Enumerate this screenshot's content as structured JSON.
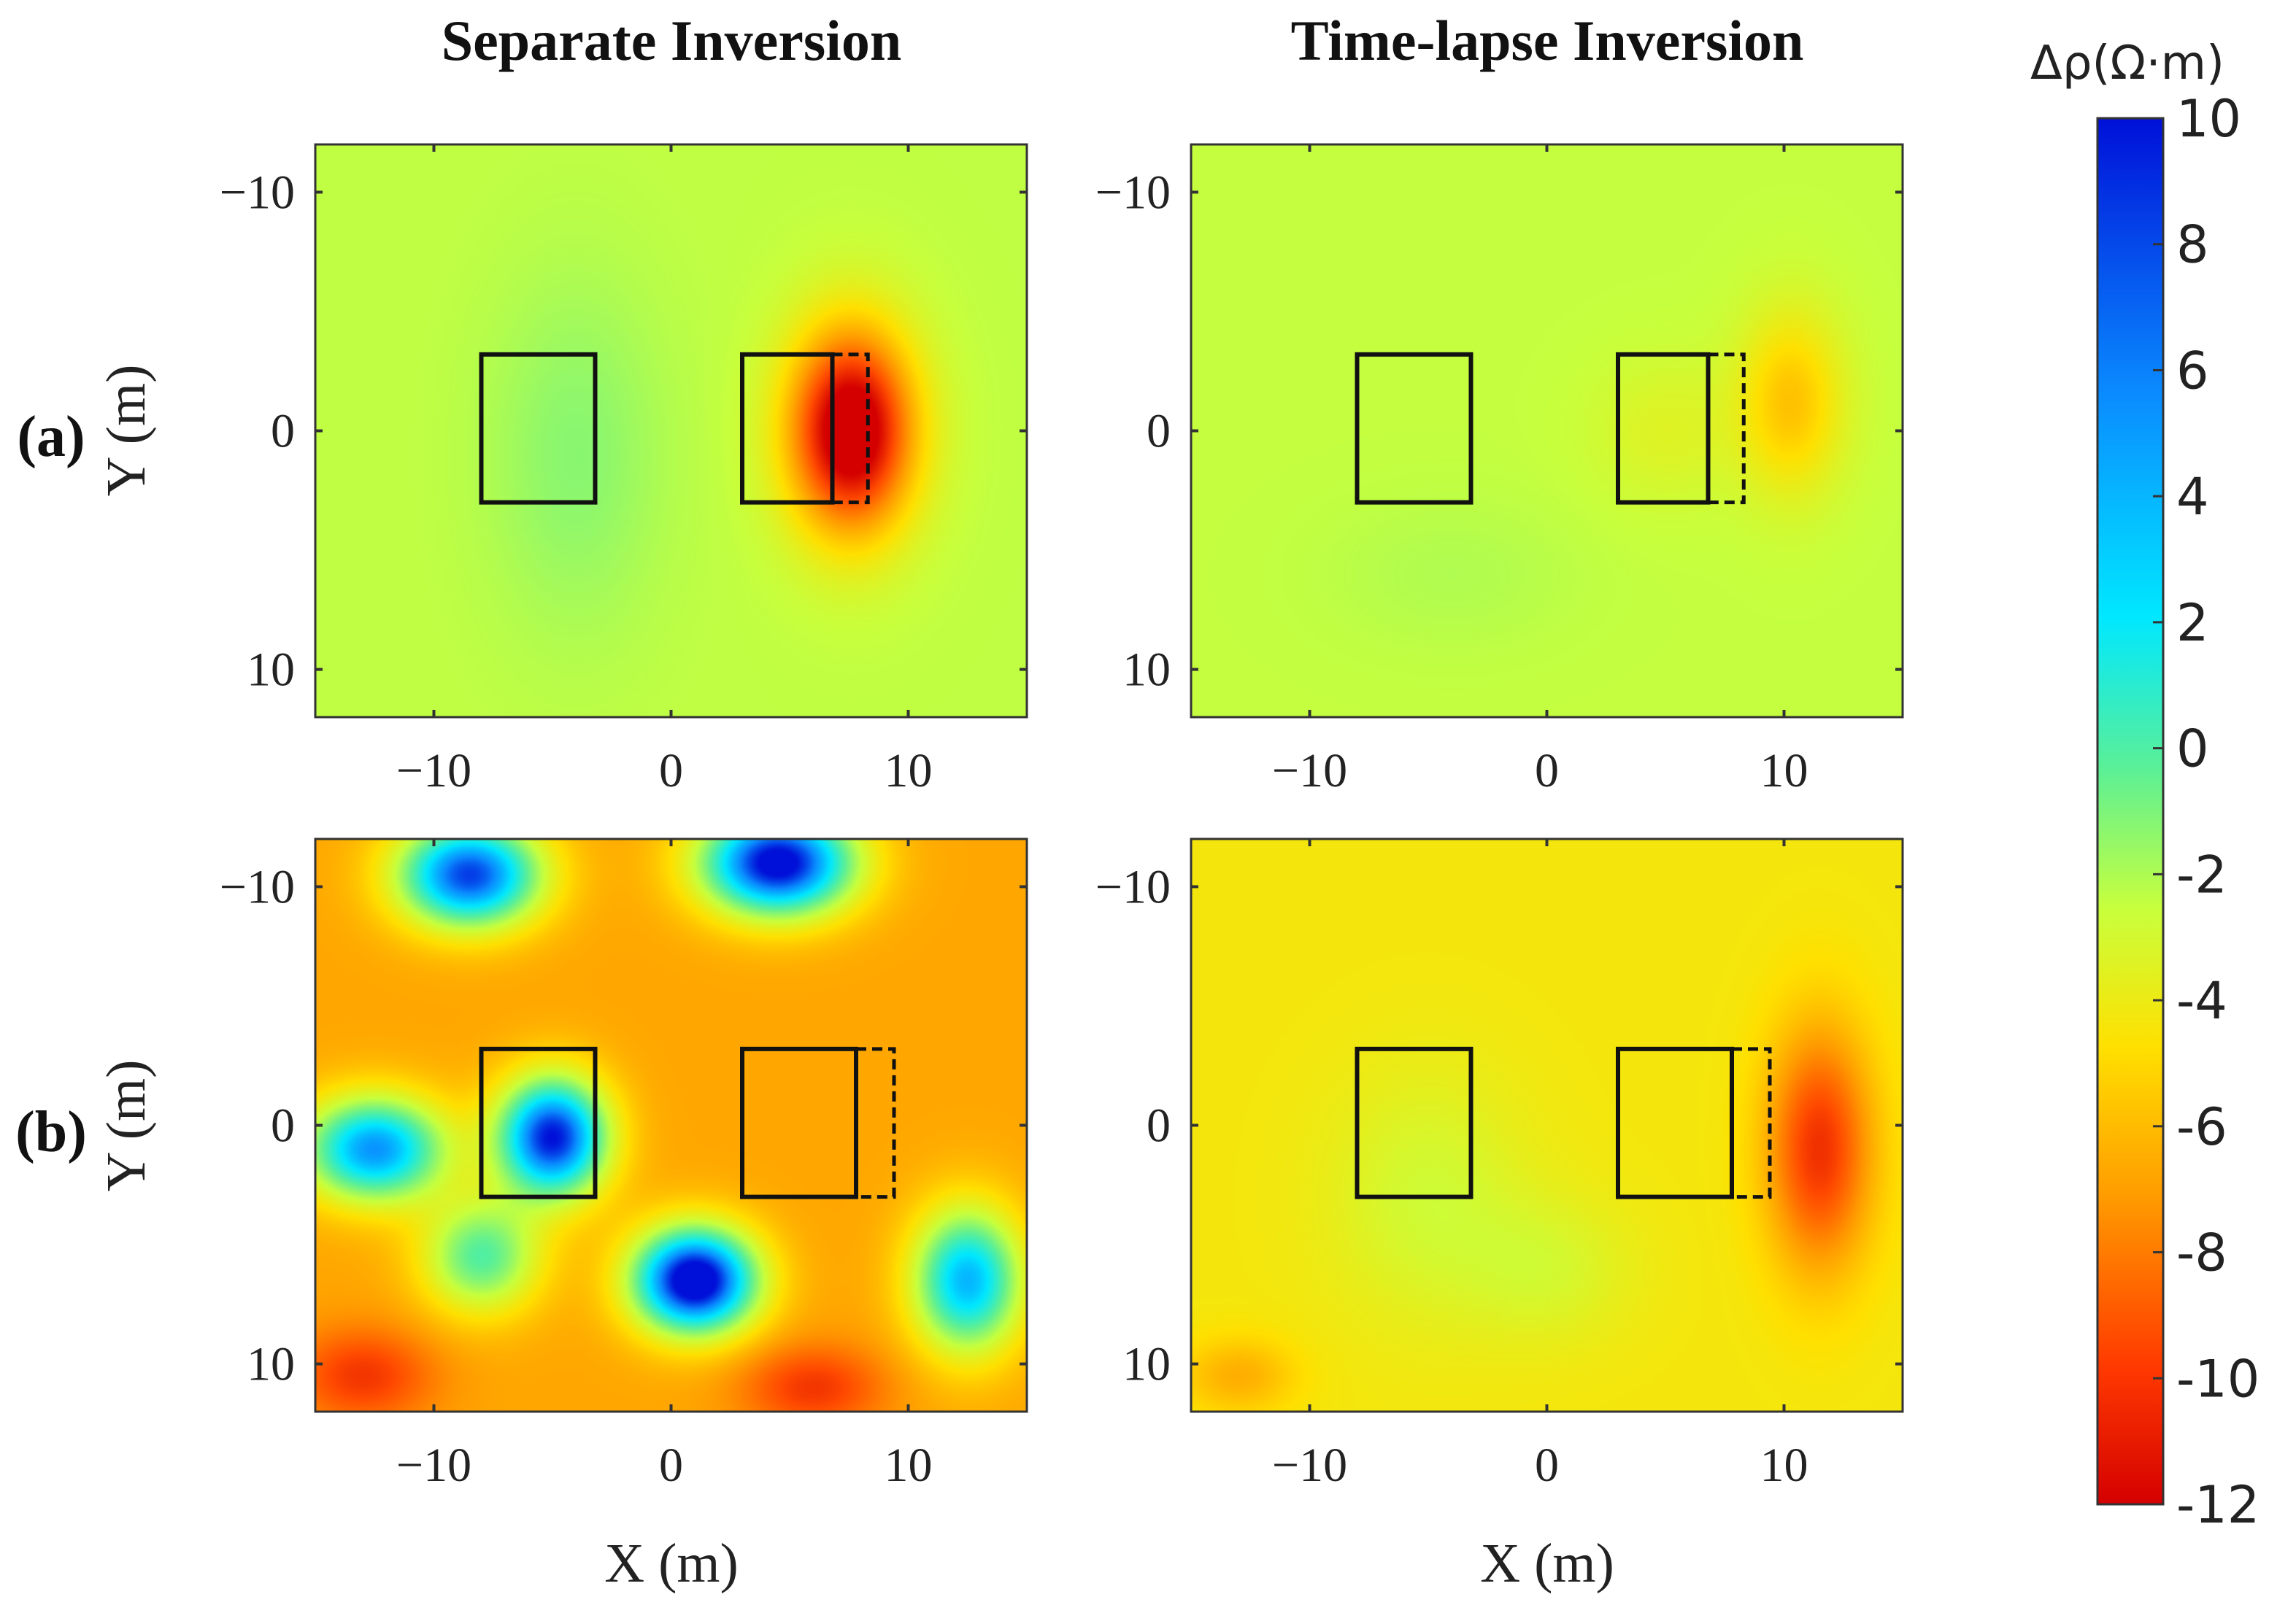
{
  "chart_data": {
    "type": "heatmap",
    "column_titles": [
      "Separate Inversion",
      "Time-lapse Inversion"
    ],
    "row_labels": [
      "(a)",
      "(b)"
    ],
    "xlabel": "X (m)",
    "ylabel": "Y (m)",
    "xlim": [
      -15,
      15
    ],
    "ylim": [
      -12,
      12
    ],
    "y_direction": "reversed",
    "x_ticks": [
      -10,
      0,
      10
    ],
    "y_ticks": [
      -10,
      0,
      10
    ],
    "x_tick_labels": [
      "−10",
      "0",
      "10"
    ],
    "y_tick_labels": [
      "−10",
      "0",
      "10"
    ],
    "colorbar": {
      "title": "Δρ(Ω·m)",
      "range": [
        -12,
        10
      ],
      "ticks": [
        10,
        8,
        6,
        4,
        2,
        0,
        -2,
        -4,
        -6,
        -8,
        -10,
        -12
      ],
      "colormap": "jet-reversed",
      "colors": [
        "#d40000",
        "#ff4a00",
        "#ff9a00",
        "#ffe000",
        "#c8ff3c",
        "#5cf096",
        "#00e8ff",
        "#0a8cff",
        "#0010d8"
      ]
    },
    "outlines": [
      {
        "panel": "a-separate",
        "boxes": [
          [
            -8,
            -3.2,
            -3.2,
            3
          ],
          [
            3,
            -3.2,
            6.8,
            3
          ]
        ],
        "dashed_boxes": [
          [
            6.8,
            -3.2,
            8.3,
            3
          ]
        ]
      },
      {
        "panel": "a-timelapse",
        "boxes": [
          [
            -8,
            -3.2,
            -3.2,
            3
          ],
          [
            3,
            -3.2,
            6.8,
            3
          ]
        ],
        "dashed_boxes": [
          [
            6.8,
            -3.2,
            8.3,
            3
          ]
        ]
      },
      {
        "panel": "b-separate",
        "boxes": [
          [
            -8,
            -3.2,
            -3.2,
            3
          ],
          [
            3,
            -3.2,
            7.8,
            3
          ]
        ],
        "dashed_boxes": [
          [
            7.8,
            -3.2,
            9.4,
            3
          ]
        ]
      },
      {
        "panel": "b-timelapse",
        "boxes": [
          [
            -8,
            -3.2,
            -3.2,
            3
          ],
          [
            3,
            -3.2,
            7.8,
            3
          ]
        ],
        "dashed_boxes": [
          [
            7.8,
            -3.2,
            9.4,
            3
          ]
        ]
      }
    ],
    "panels": [
      {
        "id": "a-separate",
        "row": "(a)",
        "column": "Separate Inversion",
        "background": -0.8,
        "anomalies": [
          {
            "x": 7.6,
            "y": 0,
            "sx": 2.6,
            "sy": 4.2,
            "value": -13.5
          },
          {
            "x": -4,
            "y": 1,
            "sx": 3.5,
            "sy": 7,
            "value": 1.4
          }
        ]
      },
      {
        "id": "a-timelapse",
        "row": "(a)",
        "column": "Time-lapse Inversion",
        "background": -0.9,
        "anomalies": [
          {
            "x": 10.3,
            "y": -1.2,
            "sx": 2.2,
            "sy": 3.8,
            "value": -4
          },
          {
            "x": 5,
            "y": 0,
            "sx": 3,
            "sy": 3,
            "value": -1.2
          },
          {
            "x": -4,
            "y": 6,
            "sx": 5,
            "sy": 3,
            "value": 0.5
          }
        ]
      },
      {
        "id": "b-separate",
        "row": "(b)",
        "column": "Separate Inversion",
        "background": -6,
        "anomalies": [
          {
            "x": -8.5,
            "y": -10.5,
            "sx": 3,
            "sy": 2.2,
            "value": 15
          },
          {
            "x": 4.5,
            "y": -11,
            "sx": 3.2,
            "sy": 2.2,
            "value": 17
          },
          {
            "x": -5,
            "y": 0.5,
            "sx": 2.3,
            "sy": 2.5,
            "value": 16
          },
          {
            "x": -12.5,
            "y": 1,
            "sx": 3,
            "sy": 2.2,
            "value": 13
          },
          {
            "x": 1,
            "y": 6.5,
            "sx": 2.6,
            "sy": 2.2,
            "value": 18
          },
          {
            "x": -8,
            "y": 5.5,
            "sx": 2.5,
            "sy": 2.4,
            "value": 8
          },
          {
            "x": 12.5,
            "y": 6.5,
            "sx": 2.3,
            "sy": 3,
            "value": 12
          },
          {
            "x": -13,
            "y": 10.5,
            "sx": 3,
            "sy": 2,
            "value": -4
          },
          {
            "x": 6,
            "y": 11,
            "sx": 3,
            "sy": 1.8,
            "value": -4
          }
        ]
      },
      {
        "id": "b-timelapse",
        "row": "(b)",
        "column": "Time-lapse Inversion",
        "background": -3.2,
        "anomalies": [
          {
            "x": 11.5,
            "y": 1,
            "sx": 2.2,
            "sy": 5,
            "value": -7
          },
          {
            "x": -5,
            "y": 3,
            "sx": 4,
            "sy": 5,
            "value": 1.8
          },
          {
            "x": 0,
            "y": 6,
            "sx": 3.5,
            "sy": 3,
            "value": 1.5
          },
          {
            "x": -13,
            "y": 10.5,
            "sx": 2.4,
            "sy": 1.6,
            "value": -2.5
          }
        ]
      }
    ]
  }
}
